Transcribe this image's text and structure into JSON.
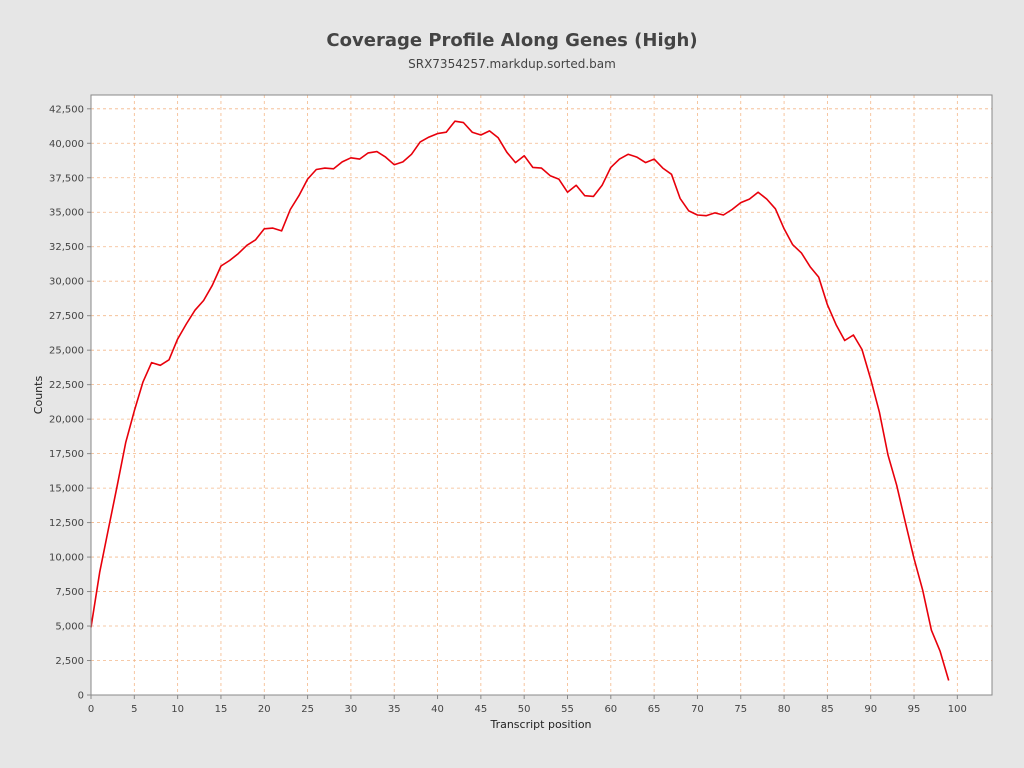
{
  "chart_data": {
    "type": "line",
    "title": "Coverage Profile Along Genes (High)",
    "subtitle": "SRX7354257.markdup.sorted.bam",
    "xlabel": "Transcript position",
    "ylabel": "Counts",
    "xlim": [
      0,
      104
    ],
    "ylim": [
      0,
      43500
    ],
    "xticks": [
      0,
      5,
      10,
      15,
      20,
      25,
      30,
      35,
      40,
      45,
      50,
      55,
      60,
      65,
      70,
      75,
      80,
      85,
      90,
      95,
      100
    ],
    "yticks": [
      0,
      2500,
      5000,
      7500,
      10000,
      12500,
      15000,
      17500,
      20000,
      22500,
      25000,
      27500,
      30000,
      32500,
      35000,
      37500,
      40000,
      42500
    ],
    "ytick_labels": [
      "0",
      "2,500",
      "5,000",
      "7,500",
      "10,000",
      "12,500",
      "15,000",
      "17,500",
      "20,000",
      "22,500",
      "25,000",
      "27,500",
      "30,000",
      "32,500",
      "35,000",
      "37,500",
      "40,000",
      "42,500"
    ],
    "grid": true,
    "grid_color": "#f4b88a",
    "background": "#ffffff",
    "series": [
      {
        "color": "#e8000b",
        "x": [
          0,
          1,
          2,
          3,
          4,
          5,
          6,
          7,
          8,
          9,
          10,
          11,
          12,
          13,
          14,
          15,
          16,
          17,
          18,
          19,
          20,
          21,
          22,
          23,
          24,
          25,
          26,
          27,
          28,
          29,
          30,
          31,
          32,
          33,
          34,
          35,
          36,
          37,
          38,
          39,
          40,
          41,
          42,
          43,
          44,
          45,
          46,
          47,
          48,
          49,
          50,
          51,
          52,
          53,
          54,
          55,
          56,
          57,
          58,
          59,
          60,
          61,
          62,
          63,
          64,
          65,
          66,
          67,
          68,
          69,
          70,
          71,
          72,
          73,
          74,
          75,
          76,
          77,
          78,
          79,
          80,
          81,
          82,
          83,
          84,
          85,
          86,
          87,
          88,
          89,
          90,
          91,
          92,
          93,
          94,
          95,
          96,
          97,
          98,
          99
        ],
        "y": [
          4900,
          8900,
          12000,
          15100,
          18300,
          20600,
          22700,
          24100,
          23900,
          24300,
          25800,
          26900,
          27900,
          28600,
          29700,
          31100,
          31500,
          32000,
          32600,
          33000,
          33800,
          33850,
          33650,
          35200,
          36200,
          37400,
          38100,
          38200,
          38150,
          38650,
          38950,
          38850,
          39300,
          39400,
          39000,
          38450,
          38650,
          39200,
          40100,
          40450,
          40700,
          40800,
          41600,
          41500,
          40800,
          40600,
          40900,
          40400,
          39350,
          38600,
          39100,
          38250,
          38200,
          37650,
          37400,
          36450,
          36950,
          36200,
          36150,
          36950,
          38250,
          38850,
          39200,
          39000,
          38600,
          38850,
          38200,
          37750,
          36000,
          35100,
          34800,
          34750,
          34950,
          34800,
          35200,
          35700,
          35950,
          36450,
          35950,
          35250,
          33800,
          32650,
          32050,
          31050,
          30300,
          28300,
          26850,
          25700,
          26100,
          25050,
          22900,
          20500,
          17400,
          15200,
          12500,
          9900,
          7600,
          4700,
          3200,
          1050
        ]
      }
    ]
  }
}
